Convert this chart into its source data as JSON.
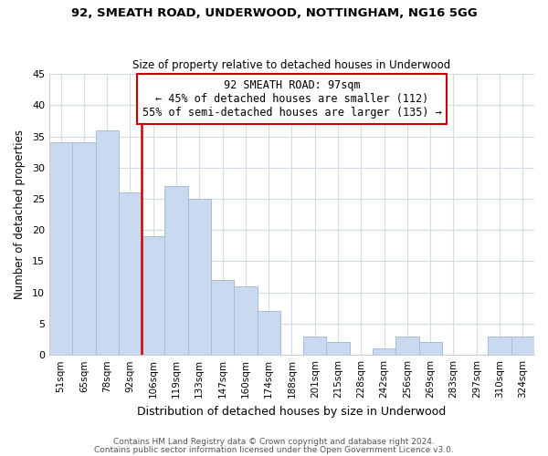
{
  "title1": "92, SMEATH ROAD, UNDERWOOD, NOTTINGHAM, NG16 5GG",
  "title2": "Size of property relative to detached houses in Underwood",
  "xlabel": "Distribution of detached houses by size in Underwood",
  "ylabel": "Number of detached properties",
  "bar_labels": [
    "51sqm",
    "65sqm",
    "78sqm",
    "92sqm",
    "106sqm",
    "119sqm",
    "133sqm",
    "147sqm",
    "160sqm",
    "174sqm",
    "188sqm",
    "201sqm",
    "215sqm",
    "228sqm",
    "242sqm",
    "256sqm",
    "269sqm",
    "283sqm",
    "297sqm",
    "310sqm",
    "324sqm"
  ],
  "bar_values": [
    34,
    34,
    36,
    26,
    19,
    27,
    25,
    12,
    11,
    7,
    0,
    3,
    2,
    0,
    1,
    3,
    2,
    0,
    0,
    3,
    3
  ],
  "bar_color": "#c8d9f0",
  "bar_edge_color": "#aabbd4",
  "vline_x_idx": 3,
  "vline_color": "#cc0000",
  "annotation_line1": "92 SMEATH ROAD: 97sqm",
  "annotation_line2": "← 45% of detached houses are smaller (112)",
  "annotation_line3": "55% of semi-detached houses are larger (135) →",
  "annotation_box_color": "#ffffff",
  "annotation_box_edge": "#cc0000",
  "ylim": [
    0,
    45
  ],
  "yticks": [
    0,
    5,
    10,
    15,
    20,
    25,
    30,
    35,
    40,
    45
  ],
  "footer1": "Contains HM Land Registry data © Crown copyright and database right 2024.",
  "footer2": "Contains public sector information licensed under the Open Government Licence v3.0.",
  "bg_color": "#ffffff",
  "grid_color": "#d0dcea"
}
